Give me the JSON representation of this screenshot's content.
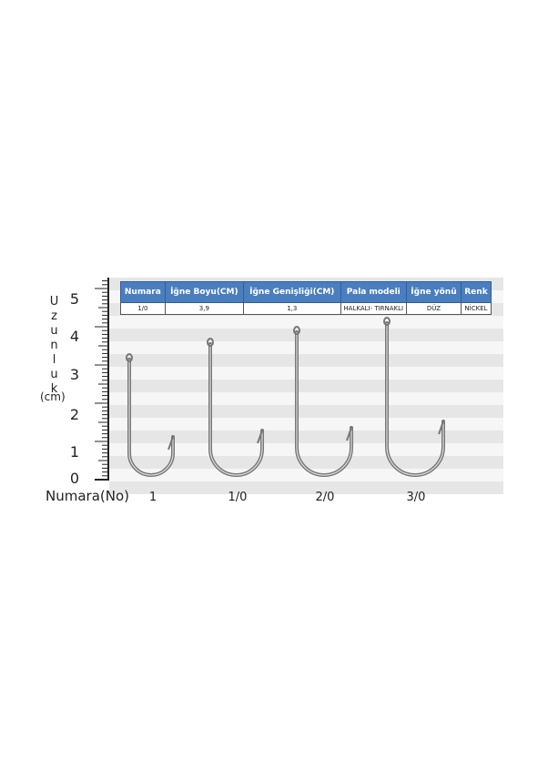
{
  "table": {
    "headers": [
      "Numara",
      "İğne Boyu(CM)",
      "İğne Genişliği(CM)",
      "Pala modeli",
      "İğne yönü",
      "Renk"
    ],
    "rows": [
      [
        "1/0",
        "3,9",
        "1,3",
        "HALKALI- TIRNAKLI",
        "DÜZ",
        "NİCKEL"
      ]
    ]
  },
  "ruler": {
    "labels": [
      "0",
      "1",
      "2",
      "3",
      "4",
      "5"
    ],
    "axis_label": "Uzunluk",
    "unit": "(cm)"
  },
  "sizes": {
    "title": "Numara(No)",
    "labels": [
      "1",
      "1/0",
      "2/0",
      "3/0"
    ]
  }
}
